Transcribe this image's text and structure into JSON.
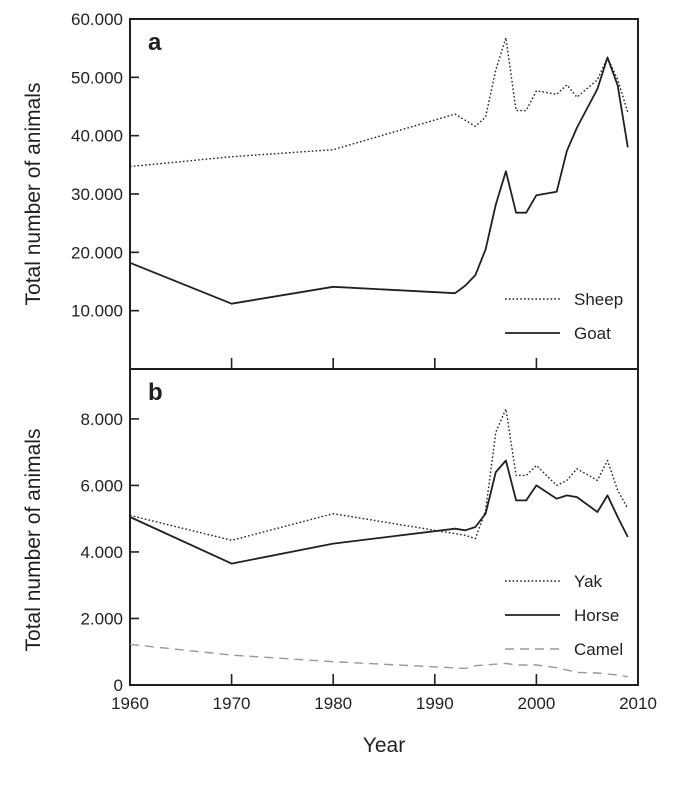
{
  "chart_data": [
    {
      "type": "line",
      "panel_label": "a",
      "ylabel": "Total number of animals",
      "xlim": [
        1960,
        2010
      ],
      "ylim": [
        0,
        60000
      ],
      "y_ticks": [
        10000,
        20000,
        30000,
        40000,
        50000,
        60000
      ],
      "y_tick_labels": [
        "10.000",
        "20.000",
        "30.000",
        "40.000",
        "50.000",
        "60.000"
      ],
      "legend_position": "bottom-right",
      "grid": false,
      "series": [
        {
          "name": "Sheep",
          "style": "dotted",
          "x": [
            1960,
            1970,
            1980,
            1992,
            1994,
            1995,
            1996,
            1997,
            1998,
            1999,
            2000,
            2002,
            2003,
            2004,
            2006,
            2007,
            2008,
            2009
          ],
          "y": [
            34700,
            36400,
            37600,
            43700,
            41600,
            43200,
            51300,
            56800,
            44300,
            44300,
            47700,
            47100,
            48700,
            46600,
            49600,
            53400,
            49600,
            44000
          ]
        },
        {
          "name": "Goat",
          "style": "solid",
          "x": [
            1960,
            1970,
            1980,
            1992,
            1993,
            1994,
            1995,
            1996,
            1997,
            1998,
            1999,
            2000,
            2002,
            2003,
            2004,
            2006,
            2007,
            2008,
            2009
          ],
          "y": [
            18200,
            11200,
            14100,
            13000,
            14300,
            16100,
            20500,
            28200,
            33900,
            26800,
            26800,
            29800,
            30400,
            37400,
            41400,
            48000,
            53400,
            48600,
            38000
          ]
        }
      ]
    },
    {
      "type": "line",
      "panel_label": "b",
      "xlabel": "Year",
      "ylabel": "Total number of animals",
      "xlim": [
        1960,
        2010
      ],
      "ylim": [
        0,
        9500
      ],
      "x_ticks": [
        1960,
        1970,
        1980,
        1990,
        2000,
        2010
      ],
      "x_tick_labels": [
        "1960",
        "1970",
        "1980",
        "1990",
        "2000",
        "2010"
      ],
      "y_ticks": [
        0,
        2000,
        4000,
        6000,
        8000
      ],
      "y_tick_labels": [
        "0",
        "2.000",
        "4.000",
        "6.000",
        "8.000"
      ],
      "legend_position": "bottom-right",
      "grid": false,
      "series": [
        {
          "name": "Yak",
          "style": "dotted",
          "x": [
            1960,
            1970,
            1980,
            1993,
            1994,
            1995,
            1996,
            1997,
            1998,
            1999,
            2000,
            2002,
            2003,
            2004,
            2006,
            2007,
            2008,
            2009
          ],
          "y": [
            5100,
            4350,
            5150,
            4500,
            4400,
            5250,
            7600,
            8300,
            6300,
            6300,
            6600,
            6000,
            6150,
            6500,
            6150,
            6750,
            5850,
            5300
          ]
        },
        {
          "name": "Horse",
          "style": "solid",
          "x": [
            1960,
            1970,
            1980,
            1992,
            1993,
            1994,
            1995,
            1996,
            1997,
            1998,
            1999,
            2000,
            2002,
            2003,
            2004,
            2006,
            2007,
            2008,
            2009
          ],
          "y": [
            5050,
            3650,
            4250,
            4700,
            4650,
            4750,
            5150,
            6400,
            6750,
            5550,
            5550,
            6000,
            5600,
            5700,
            5650,
            5200,
            5700,
            5050,
            4450
          ]
        },
        {
          "name": "Camel",
          "style": "dashed",
          "color": "#999999",
          "x": [
            1960,
            1970,
            1980,
            1993,
            1994,
            1997,
            1998,
            2000,
            2002,
            2004,
            2006,
            2008,
            2009
          ],
          "y": [
            1220,
            900,
            700,
            500,
            580,
            650,
            600,
            600,
            520,
            380,
            360,
            300,
            250
          ]
        }
      ]
    }
  ]
}
